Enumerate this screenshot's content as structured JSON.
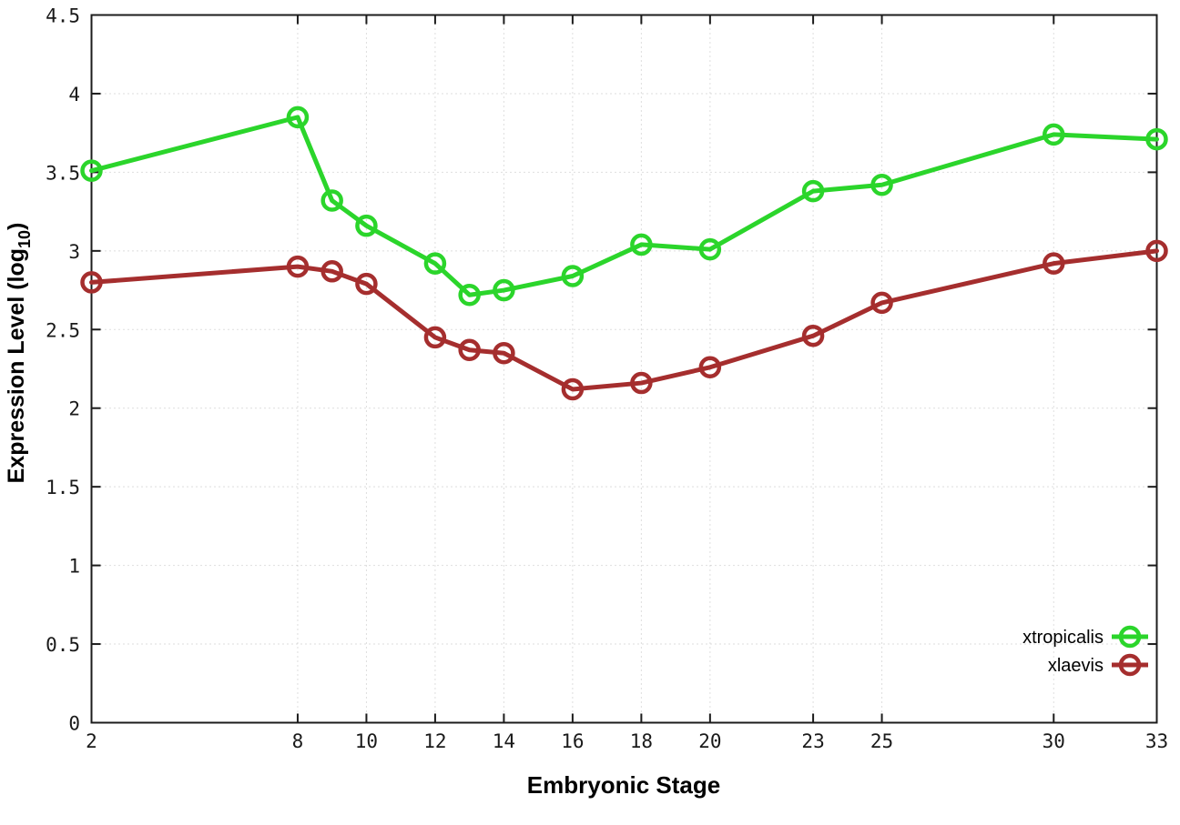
{
  "chart_data": {
    "type": "line",
    "title": "",
    "xlabel": "Embryonic Stage",
    "ylabel": "Expression Level (log10)",
    "ylabel_parts": {
      "main": "Expression Level (log",
      "sub": "10",
      "close": ")"
    },
    "x": [
      2,
      8,
      9,
      10,
      12,
      13,
      14,
      16,
      18,
      20,
      23,
      25,
      30,
      33
    ],
    "series": [
      {
        "name": "xtropicalis",
        "color": "#2bd52b",
        "values": [
          3.51,
          3.85,
          3.32,
          3.16,
          2.92,
          2.72,
          2.75,
          2.84,
          3.04,
          3.01,
          3.38,
          3.42,
          3.74,
          3.71
        ]
      },
      {
        "name": "xlaevis",
        "color": "#a52e2e",
        "values": [
          2.8,
          2.9,
          2.87,
          2.79,
          2.45,
          2.37,
          2.35,
          2.12,
          2.16,
          2.26,
          2.46,
          2.67,
          2.92,
          3.0
        ]
      }
    ],
    "xticks": [
      2,
      8,
      10,
      12,
      14,
      16,
      18,
      20,
      23,
      25,
      30,
      33
    ],
    "yticks": [
      0,
      0.5,
      1,
      1.5,
      2,
      2.5,
      3,
      3.5,
      4,
      4.5
    ],
    "xlim": [
      2,
      33
    ],
    "ylim": [
      0,
      4.5
    ],
    "grid": true,
    "legend_position": "bottom-right",
    "marker": "open-circle",
    "colors": {
      "border": "#1c1c1c",
      "grid": "#bdbdbd",
      "background": "#ffffff"
    }
  }
}
